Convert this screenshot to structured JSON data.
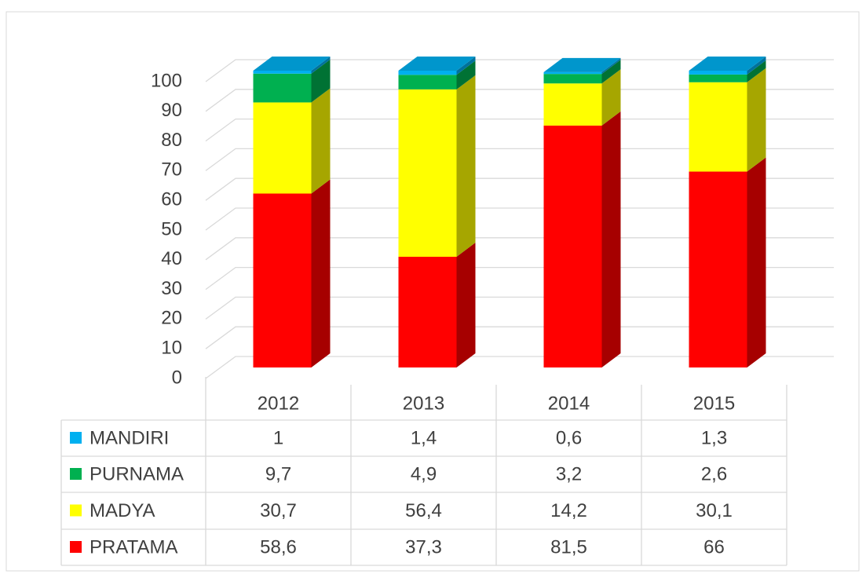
{
  "chart_data": {
    "type": "bar",
    "stacked": true,
    "categories": [
      "2012",
      "2013",
      "2014",
      "2015"
    ],
    "series": [
      {
        "name": "MANDIRI",
        "color": "#00b0f0",
        "values": [
          1,
          1.4,
          0.6,
          1.3
        ],
        "value_labels": [
          "1",
          "1,4",
          "0,6",
          "1,3"
        ]
      },
      {
        "name": "PURNAMA",
        "color": "#00b050",
        "values": [
          9.7,
          4.9,
          3.2,
          2.6
        ],
        "value_labels": [
          "9,7",
          "4,9",
          "3,2",
          "2,6"
        ]
      },
      {
        "name": "MADYA",
        "color": "#ffff00",
        "values": [
          30.7,
          56.4,
          14.2,
          30.1
        ],
        "value_labels": [
          "30,7",
          "56,4",
          "14,2",
          "30,1"
        ]
      },
      {
        "name": "PRATAMA",
        "color": "#ff0000",
        "values": [
          58.6,
          37.3,
          81.5,
          66
        ],
        "value_labels": [
          "58,6",
          "37,3",
          "81,5",
          "66"
        ]
      }
    ],
    "ylim": [
      0,
      100
    ],
    "yticks": [
      0,
      10,
      20,
      30,
      40,
      50,
      60,
      70,
      80,
      90,
      100
    ],
    "grid": true,
    "data_table": true
  }
}
